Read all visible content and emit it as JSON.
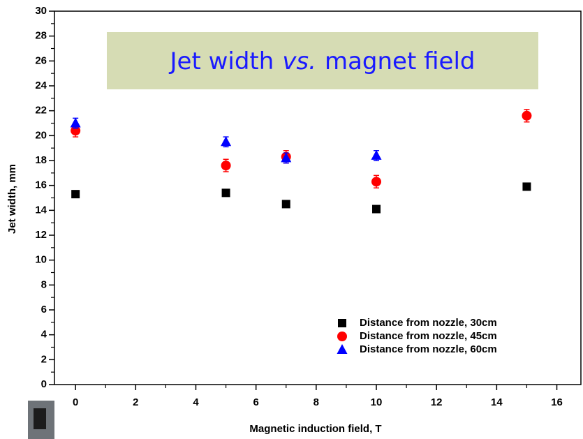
{
  "chart_data": {
    "type": "scatter",
    "annotation": [
      "Jet width",
      "vs.",
      "magnet field"
    ],
    "xlabel": "Magnetic induction field, T",
    "ylabel": "Jet width, mm",
    "xlim": [
      -0.7,
      16.8
    ],
    "ylim": [
      0,
      30
    ],
    "xticks": [
      0,
      2,
      4,
      6,
      8,
      10,
      12,
      14,
      16
    ],
    "yticks": [
      0,
      2,
      4,
      6,
      8,
      10,
      12,
      14,
      16,
      18,
      20,
      22,
      24,
      26,
      28,
      30
    ],
    "legend": "lower right",
    "series": [
      {
        "name": "Distance from nozzle, 30cm",
        "color": "#000000",
        "marker": "square",
        "x": [
          0,
          5,
          7,
          10,
          15
        ],
        "values": [
          15.3,
          15.4,
          14.5,
          14.1,
          15.9
        ]
      },
      {
        "name": "Distance from nozzle, 45cm",
        "color": "#ff0000",
        "marker": "circle",
        "x": [
          0,
          5,
          7,
          10,
          15
        ],
        "values": [
          20.4,
          17.6,
          18.3,
          16.3,
          21.6
        ],
        "errors": [
          0.5,
          0.5,
          0.5,
          0.5,
          0.5
        ]
      },
      {
        "name": "Distance from nozzle, 60cm",
        "color": "#0000ff",
        "marker": "triangle",
        "x": [
          0,
          5,
          7,
          10
        ],
        "values": [
          21,
          19.5,
          18.2,
          18.4
        ],
        "errors": [
          0.4,
          0.4,
          0.4,
          0.4
        ]
      }
    ]
  }
}
